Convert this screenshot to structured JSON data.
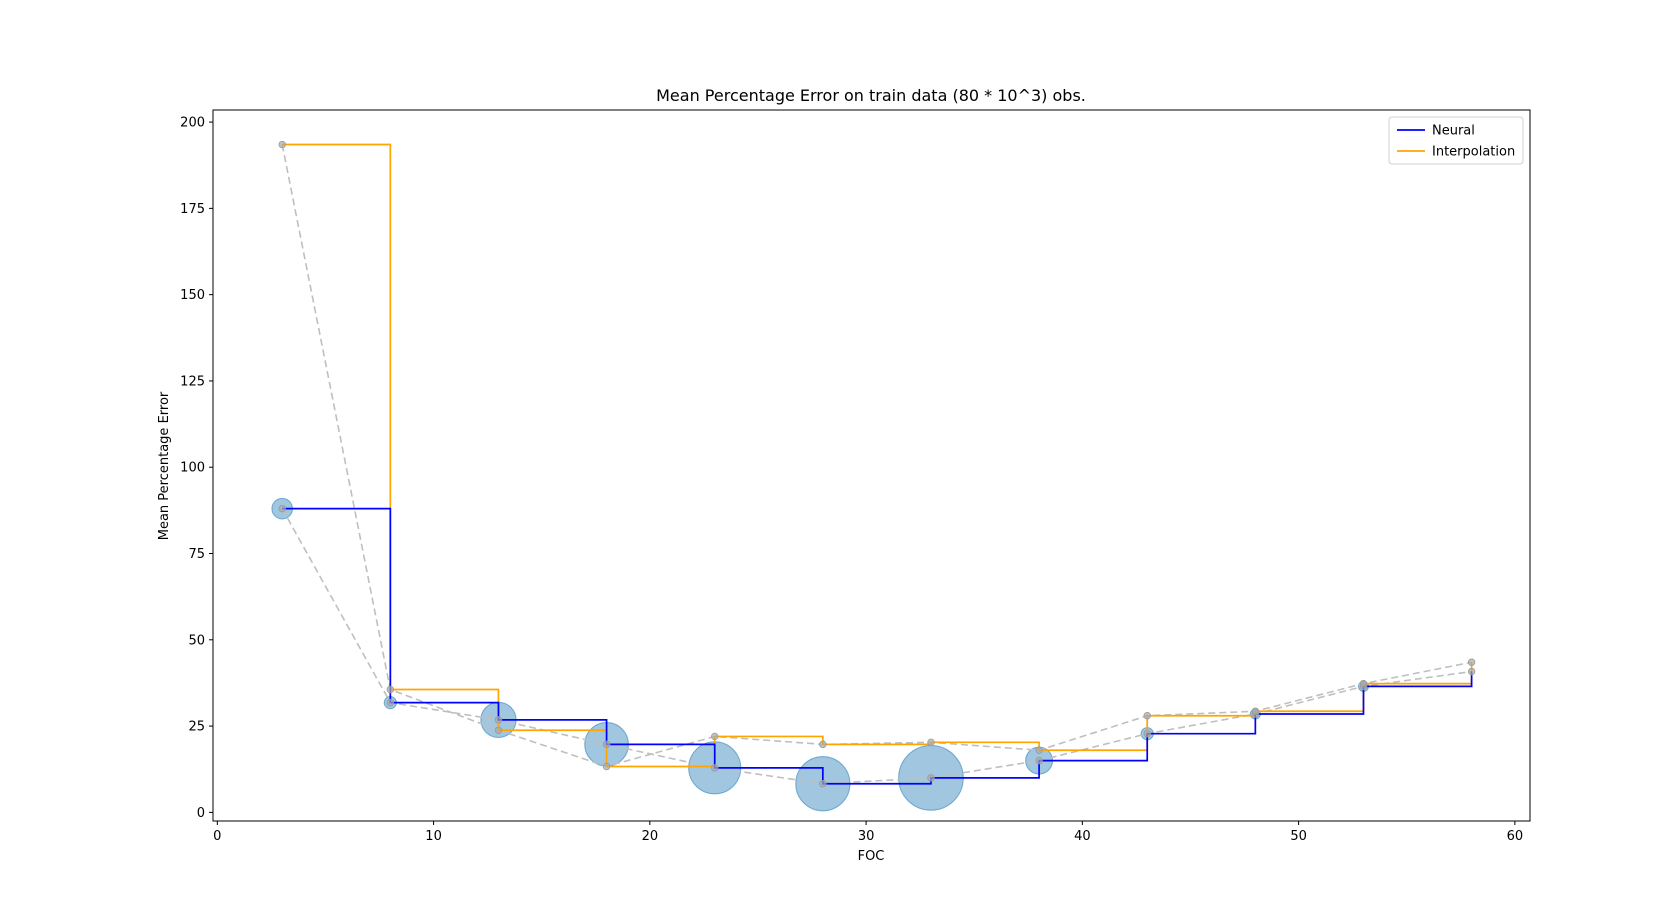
{
  "chart_data": {
    "type": "line",
    "title": "Mean Percentage Error on train data (80 * 10^3) obs.",
    "xlabel": "FOC",
    "ylabel": "Mean Percentage Error",
    "xlim": [
      -0.2,
      60.7
    ],
    "ylim": [
      -2.5,
      203.5
    ],
    "xticks": [
      0,
      10,
      20,
      30,
      40,
      50,
      60
    ],
    "yticks": [
      0,
      25,
      50,
      75,
      100,
      125,
      150,
      175,
      200
    ],
    "grid": false,
    "legend_position": "top-right",
    "x": [
      3,
      8,
      13,
      18,
      23,
      28,
      33,
      38,
      43,
      48,
      53,
      58
    ],
    "series": [
      {
        "name": "Neural",
        "style": "step-post",
        "color": "#0000ff",
        "values": [
          88.0,
          31.8,
          26.8,
          19.7,
          12.9,
          8.3,
          10.0,
          15.0,
          22.8,
          28.5,
          36.5,
          40.8
        ]
      },
      {
        "name": "Interpolation",
        "style": "step-post",
        "color": "#ffa500",
        "values": [
          193.5,
          35.6,
          23.8,
          13.3,
          22.0,
          19.7,
          20.3,
          18.0,
          28.0,
          29.3,
          37.3,
          43.5
        ]
      }
    ],
    "dashed_connectors_color": "#bfbfbf",
    "bubble_color": "#1f77b4",
    "bubble_sizes": [
      0.6,
      0.2,
      1.3,
      1.7,
      2.1,
      2.2,
      2.7,
      0.9,
      0.2,
      0.1,
      0.1,
      0.0
    ]
  }
}
